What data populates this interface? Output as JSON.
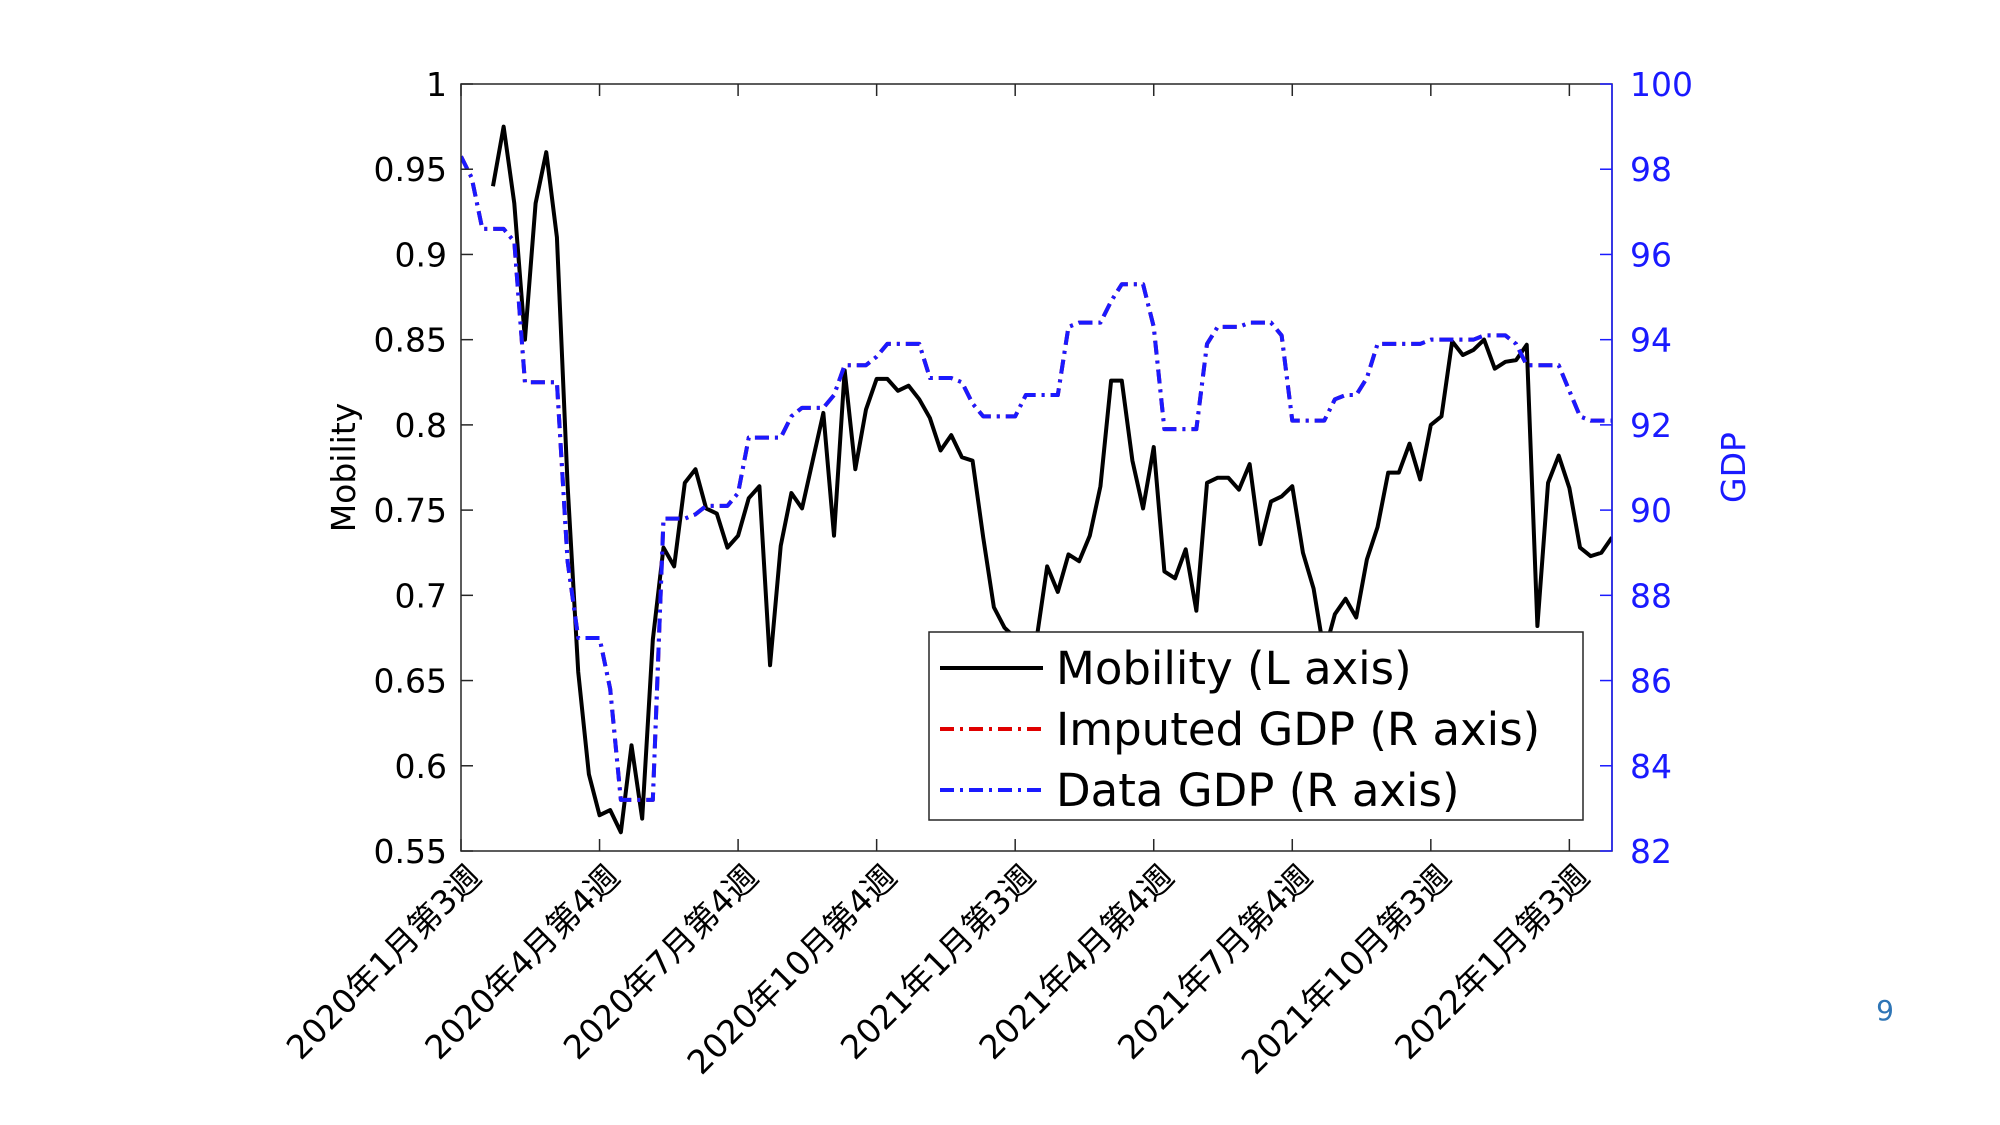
{
  "chart_data": {
    "type": "line",
    "ylabel": "Mobility",
    "y2label": "GDP",
    "ylim": [
      0.55,
      1
    ],
    "yticks": [
      0.55,
      0.6,
      0.65,
      0.7,
      0.75,
      0.8,
      0.85,
      0.9,
      0.95,
      1
    ],
    "y2lim": [
      82,
      100
    ],
    "y2ticks": [
      82,
      84,
      86,
      88,
      90,
      92,
      94,
      96,
      98,
      100
    ],
    "y2color": "#1a1aff",
    "xlim": [
      0,
      108
    ],
    "xticks": [
      {
        "value": 0,
        "label": "2020年1月第3週"
      },
      {
        "value": 13,
        "label": "2020年4月第4週"
      },
      {
        "value": 26,
        "label": "2020年7月第4週"
      },
      {
        "value": 39,
        "label": "2020年10月第4週"
      },
      {
        "value": 52,
        "label": "2021年1月第3週"
      },
      {
        "value": 65,
        "label": "2021年4月第4週"
      },
      {
        "value": 78,
        "label": "2021年7月第4週"
      },
      {
        "value": 91,
        "label": "2021年10月第3週"
      },
      {
        "value": 104,
        "label": "2022年1月第3週"
      }
    ],
    "legend": "lower right",
    "series": [
      {
        "name": "Mobility (L axis)",
        "color": "#000000",
        "linestyle": "solid",
        "x": [
          3,
          4,
          5,
          6,
          7,
          8,
          9,
          10,
          11,
          12,
          13,
          14,
          15,
          16,
          17,
          18,
          19,
          20,
          21,
          22,
          23,
          24,
          25,
          26,
          27,
          28,
          29,
          30,
          31,
          32,
          33,
          34,
          35,
          36,
          37,
          38,
          39,
          40,
          41,
          42,
          43,
          44,
          45,
          46,
          47,
          48,
          49,
          50,
          51,
          52,
          53,
          54,
          55,
          56,
          57,
          58,
          59,
          60,
          61,
          62,
          63,
          64,
          65,
          66,
          67,
          68,
          69,
          70,
          71,
          72,
          73,
          74,
          75,
          76,
          77,
          78,
          79,
          80,
          81,
          82,
          83,
          84,
          85,
          86,
          87,
          88,
          89,
          90,
          91,
          92,
          93,
          94,
          95,
          96,
          97,
          98,
          99,
          100,
          101,
          102,
          103,
          104,
          105,
          106,
          107,
          108
        ],
        "values": [
          0.94,
          0.975,
          0.93,
          0.85,
          0.93,
          0.96,
          0.91,
          0.765,
          0.655,
          0.595,
          0.571,
          0.574,
          0.561,
          0.612,
          0.569,
          0.674,
          0.728,
          0.717,
          0.766,
          0.774,
          0.751,
          0.748,
          0.728,
          0.735,
          0.757,
          0.764,
          0.659,
          0.729,
          0.76,
          0.751,
          0.779,
          0.807,
          0.735,
          0.832,
          0.774,
          0.809,
          0.827,
          0.827,
          0.82,
          0.823,
          0.815,
          0.804,
          0.785,
          0.794,
          0.781,
          0.779,
          0.734,
          0.693,
          0.681,
          0.675,
          0.674,
          0.674,
          0.717,
          0.702,
          0.724,
          0.72,
          0.735,
          0.764,
          0.826,
          0.826,
          0.779,
          0.751,
          0.787,
          0.714,
          0.71,
          0.727,
          0.691,
          0.766,
          0.769,
          0.769,
          0.762,
          0.777,
          0.73,
          0.755,
          0.758,
          0.764,
          0.725,
          0.704,
          0.666,
          0.689,
          0.698,
          0.687,
          0.721,
          0.74,
          0.772,
          0.772,
          0.789,
          0.768,
          0.8,
          0.805,
          0.849,
          0.841,
          0.844,
          0.85,
          0.833,
          0.837,
          0.838,
          0.847,
          0.682,
          0.766,
          0.782,
          0.763,
          0.728,
          0.723,
          0.725,
          0.734
        ]
      },
      {
        "name": "Imputed GDP (R axis)",
        "color": "#e00000",
        "linestyle": "dashdot",
        "axis": "y2",
        "x": [
          0,
          1,
          2,
          3,
          4,
          5,
          6,
          7,
          8,
          9,
          10,
          11,
          12,
          13,
          14,
          15,
          16,
          17,
          18,
          19,
          20,
          21,
          22,
          23,
          24,
          25,
          26,
          27,
          28,
          29,
          30,
          31,
          32,
          33,
          34,
          35,
          36,
          37,
          38,
          39,
          40,
          41,
          42,
          43,
          44,
          45,
          46,
          47,
          48,
          49,
          50,
          51,
          52,
          53,
          54,
          55,
          56,
          57,
          58,
          59,
          60,
          61,
          62,
          63,
          64,
          65,
          66,
          67,
          68,
          69,
          70,
          71,
          72,
          73,
          74,
          75,
          76,
          77,
          78,
          79,
          80,
          81,
          82,
          83,
          84,
          85,
          86,
          87,
          88,
          89,
          90,
          91,
          92,
          93,
          94,
          95,
          96,
          97,
          98,
          99,
          100,
          101,
          102,
          103,
          104,
          105,
          106,
          107,
          108
        ],
        "values": [
          98.3,
          97.8,
          96.6,
          96.6,
          96.6,
          96.3,
          93.0,
          93.0,
          93.0,
          93.0,
          88.8,
          87.0,
          87.0,
          87.0,
          85.8,
          83.2,
          83.2,
          83.2,
          83.2,
          89.8,
          89.8,
          89.8,
          89.9,
          90.1,
          90.1,
          90.1,
          90.4,
          91.7,
          91.7,
          91.7,
          91.7,
          92.2,
          92.4,
          92.4,
          92.4,
          92.7,
          93.4,
          93.4,
          93.4,
          93.6,
          93.9,
          93.9,
          93.9,
          93.9,
          93.1,
          93.1,
          93.1,
          93.0,
          92.5,
          92.2,
          92.2,
          92.2,
          92.2,
          92.7,
          92.7,
          92.7,
          92.7,
          94.3,
          94.4,
          94.4,
          94.4,
          94.9,
          95.3,
          95.3,
          95.3,
          94.3,
          91.9,
          91.9,
          91.9,
          91.9,
          93.9,
          94.3,
          94.3,
          94.3,
          94.4,
          94.4,
          94.4,
          94.1,
          92.1,
          92.1,
          92.1,
          92.1,
          92.6,
          92.7,
          92.7,
          93.1,
          93.9,
          93.9,
          93.9,
          93.9,
          93.9,
          94.0,
          94.0,
          94.0,
          94.0,
          94.0,
          94.1,
          94.1,
          94.1,
          93.9,
          93.4,
          93.4,
          93.4,
          93.4,
          92.8,
          92.2,
          92.1,
          92.1,
          92.1
        ]
      },
      {
        "name": "Data GDP (R axis)",
        "color": "#1a1aff",
        "linestyle": "dashdot",
        "axis": "y2",
        "x": [
          0,
          1,
          2,
          3,
          4,
          5,
          6,
          7,
          8,
          9,
          10,
          11,
          12,
          13,
          14,
          15,
          16,
          17,
          18,
          19,
          20,
          21,
          22,
          23,
          24,
          25,
          26,
          27,
          28,
          29,
          30,
          31,
          32,
          33,
          34,
          35,
          36,
          37,
          38,
          39,
          40,
          41,
          42,
          43,
          44,
          45,
          46,
          47,
          48,
          49,
          50,
          51,
          52,
          53,
          54,
          55,
          56,
          57,
          58,
          59,
          60,
          61,
          62,
          63,
          64,
          65,
          66,
          67,
          68,
          69,
          70,
          71,
          72,
          73,
          74,
          75,
          76,
          77,
          78,
          79,
          80,
          81,
          82,
          83,
          84,
          85,
          86,
          87,
          88,
          89,
          90,
          91,
          92,
          93,
          94,
          95,
          96,
          97,
          98,
          99,
          100,
          101,
          102,
          103,
          104,
          105,
          106,
          107,
          108
        ],
        "values": [
          98.3,
          97.8,
          96.6,
          96.6,
          96.6,
          96.3,
          93.0,
          93.0,
          93.0,
          93.0,
          88.8,
          87.0,
          87.0,
          87.0,
          85.8,
          83.2,
          83.2,
          83.2,
          83.2,
          89.8,
          89.8,
          89.8,
          89.9,
          90.1,
          90.1,
          90.1,
          90.4,
          91.7,
          91.7,
          91.7,
          91.7,
          92.2,
          92.4,
          92.4,
          92.4,
          92.7,
          93.4,
          93.4,
          93.4,
          93.6,
          93.9,
          93.9,
          93.9,
          93.9,
          93.1,
          93.1,
          93.1,
          93.0,
          92.5,
          92.2,
          92.2,
          92.2,
          92.2,
          92.7,
          92.7,
          92.7,
          92.7,
          94.3,
          94.4,
          94.4,
          94.4,
          94.9,
          95.3,
          95.3,
          95.3,
          94.3,
          91.9,
          91.9,
          91.9,
          91.9,
          93.9,
          94.3,
          94.3,
          94.3,
          94.4,
          94.4,
          94.4,
          94.1,
          92.1,
          92.1,
          92.1,
          92.1,
          92.6,
          92.7,
          92.7,
          93.1,
          93.9,
          93.9,
          93.9,
          93.9,
          93.9,
          94.0,
          94.0,
          94.0,
          94.0,
          94.0,
          94.1,
          94.1,
          94.1,
          93.9,
          93.4,
          93.4,
          93.4,
          93.4,
          92.8,
          92.2,
          92.1,
          92.1,
          92.1
        ]
      }
    ]
  },
  "page_number": "9"
}
